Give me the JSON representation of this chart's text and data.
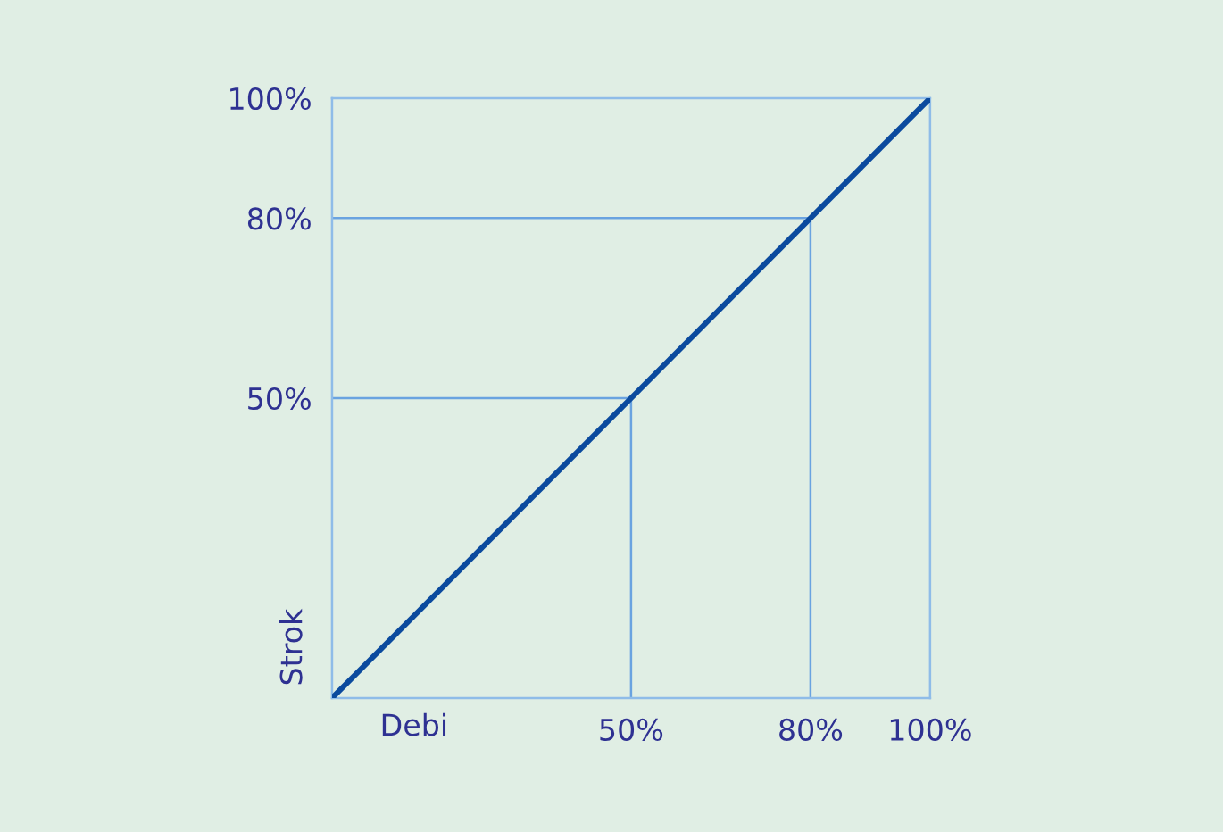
{
  "chart_data": {
    "type": "line",
    "xlabel": "Debi",
    "ylabel": "Strok",
    "xlim": [
      0,
      100
    ],
    "ylim": [
      0,
      100
    ],
    "xticks": [
      {
        "value": 50,
        "label": "50%"
      },
      {
        "value": 80,
        "label": "80%"
      },
      {
        "value": 100,
        "label": "100%"
      }
    ],
    "yticks": [
      {
        "value": 50,
        "label": "50%"
      },
      {
        "value": 80,
        "label": "80%"
      },
      {
        "value": 100,
        "label": "100%"
      }
    ],
    "series": [
      {
        "color": "#0b4a9e",
        "x": [
          0,
          100
        ],
        "values": [
          0,
          100
        ]
      },
      {
        "color": "#6aa3e0",
        "x": [
          0,
          50,
          50
        ],
        "values": [
          50,
          50,
          0
        ]
      },
      {
        "color": "#6aa3e0",
        "x": [
          0,
          80,
          80
        ],
        "values": [
          80,
          80,
          0
        ]
      }
    ],
    "grid": false,
    "legend": false,
    "marker": "none",
    "line_style": "solid"
  }
}
